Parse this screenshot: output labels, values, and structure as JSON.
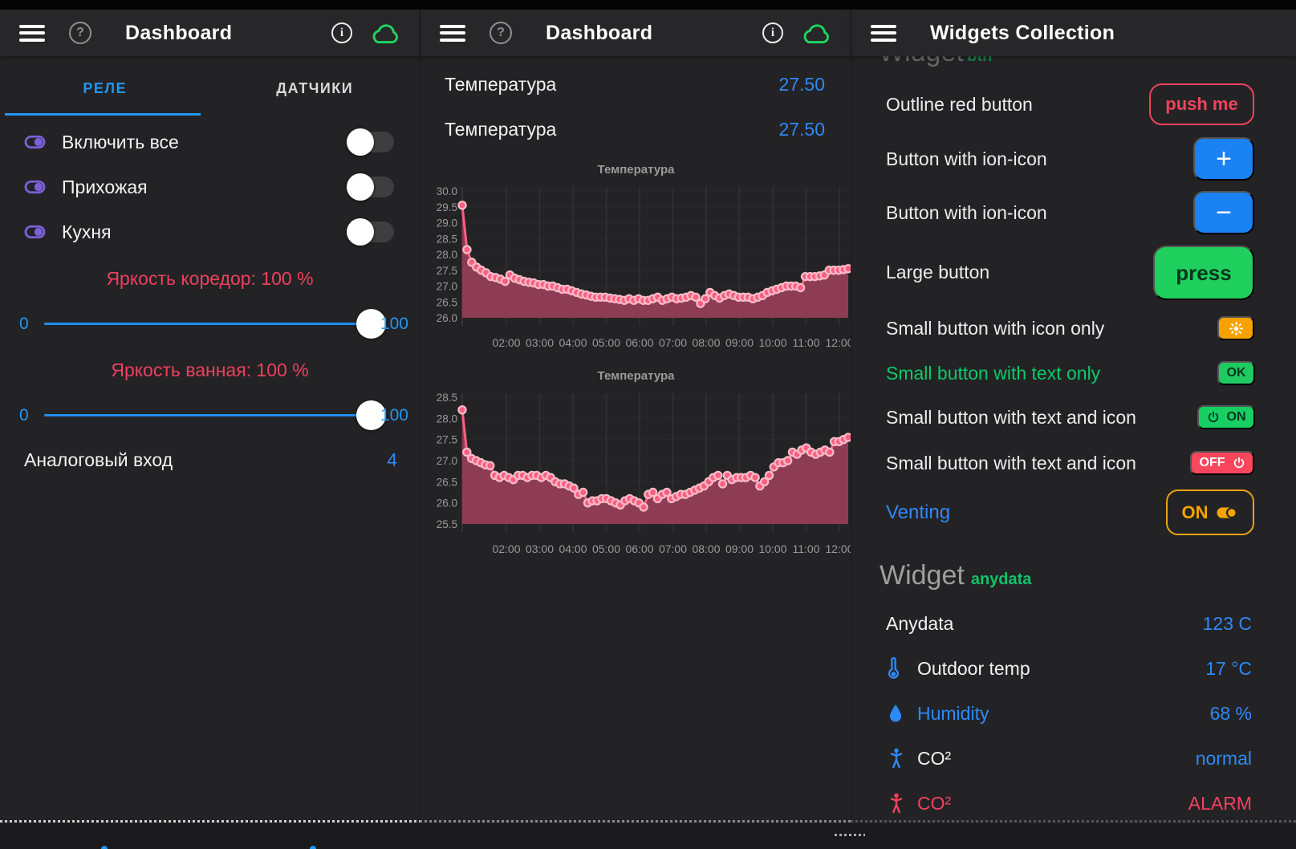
{
  "colors": {
    "accent_blue": "#2196f3",
    "value_blue": "#2e89f7",
    "alert_red": "#f0435c",
    "chart_line_pink": "#f8607f",
    "chart_fill_maroon": "#8d3c54",
    "green": "#10c469",
    "amber": "#f5a400",
    "purple": "#7b5fd9",
    "cloud_green": "#1ed760"
  },
  "left_panel": {
    "header": {
      "title": "Dashboard",
      "icons": [
        "menu-icon",
        "help-icon",
        "info-icon",
        "cloud-icon"
      ]
    },
    "tabs": [
      {
        "label": "РЕЛЕ",
        "active": true
      },
      {
        "label": "ДАТЧИКИ",
        "active": false
      }
    ],
    "relays": [
      {
        "label": "Включить все",
        "state": "off"
      },
      {
        "label": "Прихожая",
        "state": "off"
      },
      {
        "label": "Кухня",
        "state": "off"
      }
    ],
    "sliders": [
      {
        "title": "Яркость коредор: 100 %",
        "min": "0",
        "max": "100",
        "value": 100
      },
      {
        "title": "Яркость ванная: 100 %",
        "min": "0",
        "max": "100",
        "value": 100
      }
    ],
    "analog_input": {
      "label": "Аналоговый вход",
      "value": "4"
    }
  },
  "middle_panel": {
    "header": {
      "title": "Dashboard",
      "icons": [
        "menu-icon",
        "help-icon",
        "info-icon",
        "cloud-icon"
      ]
    },
    "readings": [
      {
        "label": "Температура",
        "value": "27.50"
      },
      {
        "label": "Температура",
        "value": "27.50"
      }
    ]
  },
  "right_panel": {
    "header": {
      "title": "Widgets Collection",
      "icons": [
        "menu-icon"
      ]
    },
    "clipped_heading": {
      "title": "Widget",
      "subtitle": "btn"
    },
    "rows": [
      {
        "label": "Outline red button",
        "button_label": "push me"
      },
      {
        "label": "Button with ion-icon",
        "button_label": "+"
      },
      {
        "label": "Button with ion-icon",
        "button_label": "−"
      },
      {
        "label": "Large button",
        "button_label": "press"
      },
      {
        "label": "Small button with icon only",
        "button_icon": "sun-icon"
      },
      {
        "label": "Small button with text only",
        "button_label": "OK"
      },
      {
        "label": "Small button with text and icon",
        "button_label": "ON",
        "button_icon": "power-icon"
      },
      {
        "label": "Small button with text and icon",
        "button_label": "OFF",
        "button_icon": "power-icon"
      },
      {
        "label": "Venting",
        "button_label": "ON",
        "button_icon": "toggle-on-icon"
      }
    ],
    "anydata_section": {
      "title": "Widget",
      "subtitle": "anydata",
      "rows": [
        {
          "label": "Anydata",
          "value": "123 C"
        },
        {
          "icon": "thermometer-icon",
          "label": "Outdoor temp",
          "value": "17 °C"
        },
        {
          "icon": "droplet-icon",
          "label": "Humidity",
          "value": "68 %",
          "label_color": "blue"
        },
        {
          "icon": "person-icon",
          "label": "CO²",
          "value": "normal"
        },
        {
          "icon": "person-icon",
          "label": "CO²",
          "value": "ALARM",
          "alarm": true
        }
      ]
    }
  },
  "chart_data": [
    {
      "type": "area",
      "title": "Температура",
      "xlabel": "",
      "ylabel": "",
      "grid": true,
      "legend": "none",
      "ylim": [
        26.0,
        30.0
      ],
      "y_ticks": [
        "30.0",
        "29.5",
        "29.0",
        "28.5",
        "28.0",
        "27.5",
        "27.0",
        "26.5",
        "26.0"
      ],
      "x_ticks": [
        "02:00",
        "03:00",
        "04:00",
        "05:00",
        "06:00",
        "07:00",
        "08:00",
        "09:00",
        "10:00",
        "11:00",
        "12:00"
      ],
      "values": [
        29.55,
        28.15,
        27.75,
        27.6,
        27.5,
        27.42,
        27.3,
        27.27,
        27.22,
        27.15,
        27.35,
        27.25,
        27.2,
        27.15,
        27.12,
        27.1,
        27.05,
        27.05,
        27.0,
        27.0,
        26.95,
        26.9,
        26.9,
        26.85,
        26.8,
        26.75,
        26.72,
        26.68,
        26.65,
        26.65,
        26.65,
        26.62,
        26.6,
        26.58,
        26.55,
        26.6,
        26.55,
        26.6,
        26.55,
        26.55,
        26.6,
        26.65,
        26.55,
        26.6,
        26.65,
        26.6,
        26.62,
        26.65,
        26.7,
        26.65,
        26.45,
        26.6,
        26.8,
        26.7,
        26.62,
        26.7,
        26.75,
        26.7,
        26.65,
        26.65,
        26.65,
        26.6,
        26.65,
        26.7,
        26.8,
        26.85,
        26.9,
        26.95,
        27.0,
        27.0,
        27.0,
        26.95,
        27.3,
        27.3,
        27.3,
        27.32,
        27.35,
        27.5,
        27.5,
        27.5,
        27.52,
        27.55
      ]
    },
    {
      "type": "area",
      "title": "Температура",
      "xlabel": "",
      "ylabel": "",
      "grid": true,
      "legend": "none",
      "ylim": [
        25.5,
        28.5
      ],
      "y_ticks": [
        "28.5",
        "28.0",
        "27.5",
        "27.0",
        "26.5",
        "26.0",
        "25.5"
      ],
      "x_ticks": [
        "02:00",
        "03:00",
        "04:00",
        "05:00",
        "06:00",
        "07:00",
        "08:00",
        "09:00",
        "10:00",
        "11:00",
        "12:00"
      ],
      "values": [
        28.2,
        27.2,
        27.05,
        27.0,
        26.95,
        26.9,
        26.88,
        26.65,
        26.6,
        26.65,
        26.6,
        26.55,
        26.65,
        26.65,
        26.6,
        26.65,
        26.65,
        26.6,
        26.65,
        26.6,
        26.5,
        26.45,
        26.45,
        26.4,
        26.35,
        26.2,
        26.25,
        26.0,
        26.05,
        26.05,
        26.1,
        26.1,
        26.05,
        26.0,
        25.95,
        26.05,
        26.1,
        26.05,
        26.0,
        25.9,
        26.2,
        26.25,
        26.1,
        26.2,
        26.25,
        26.1,
        26.15,
        26.2,
        26.2,
        26.25,
        26.3,
        26.35,
        26.4,
        26.5,
        26.6,
        26.65,
        26.45,
        26.65,
        26.55,
        26.6,
        26.6,
        26.6,
        26.65,
        26.6,
        26.4,
        26.5,
        26.65,
        26.85,
        26.95,
        26.95,
        27.0,
        27.2,
        27.15,
        27.25,
        27.3,
        27.2,
        27.15,
        27.2,
        27.25,
        27.2,
        27.45,
        27.45,
        27.5,
        27.55
      ]
    }
  ]
}
